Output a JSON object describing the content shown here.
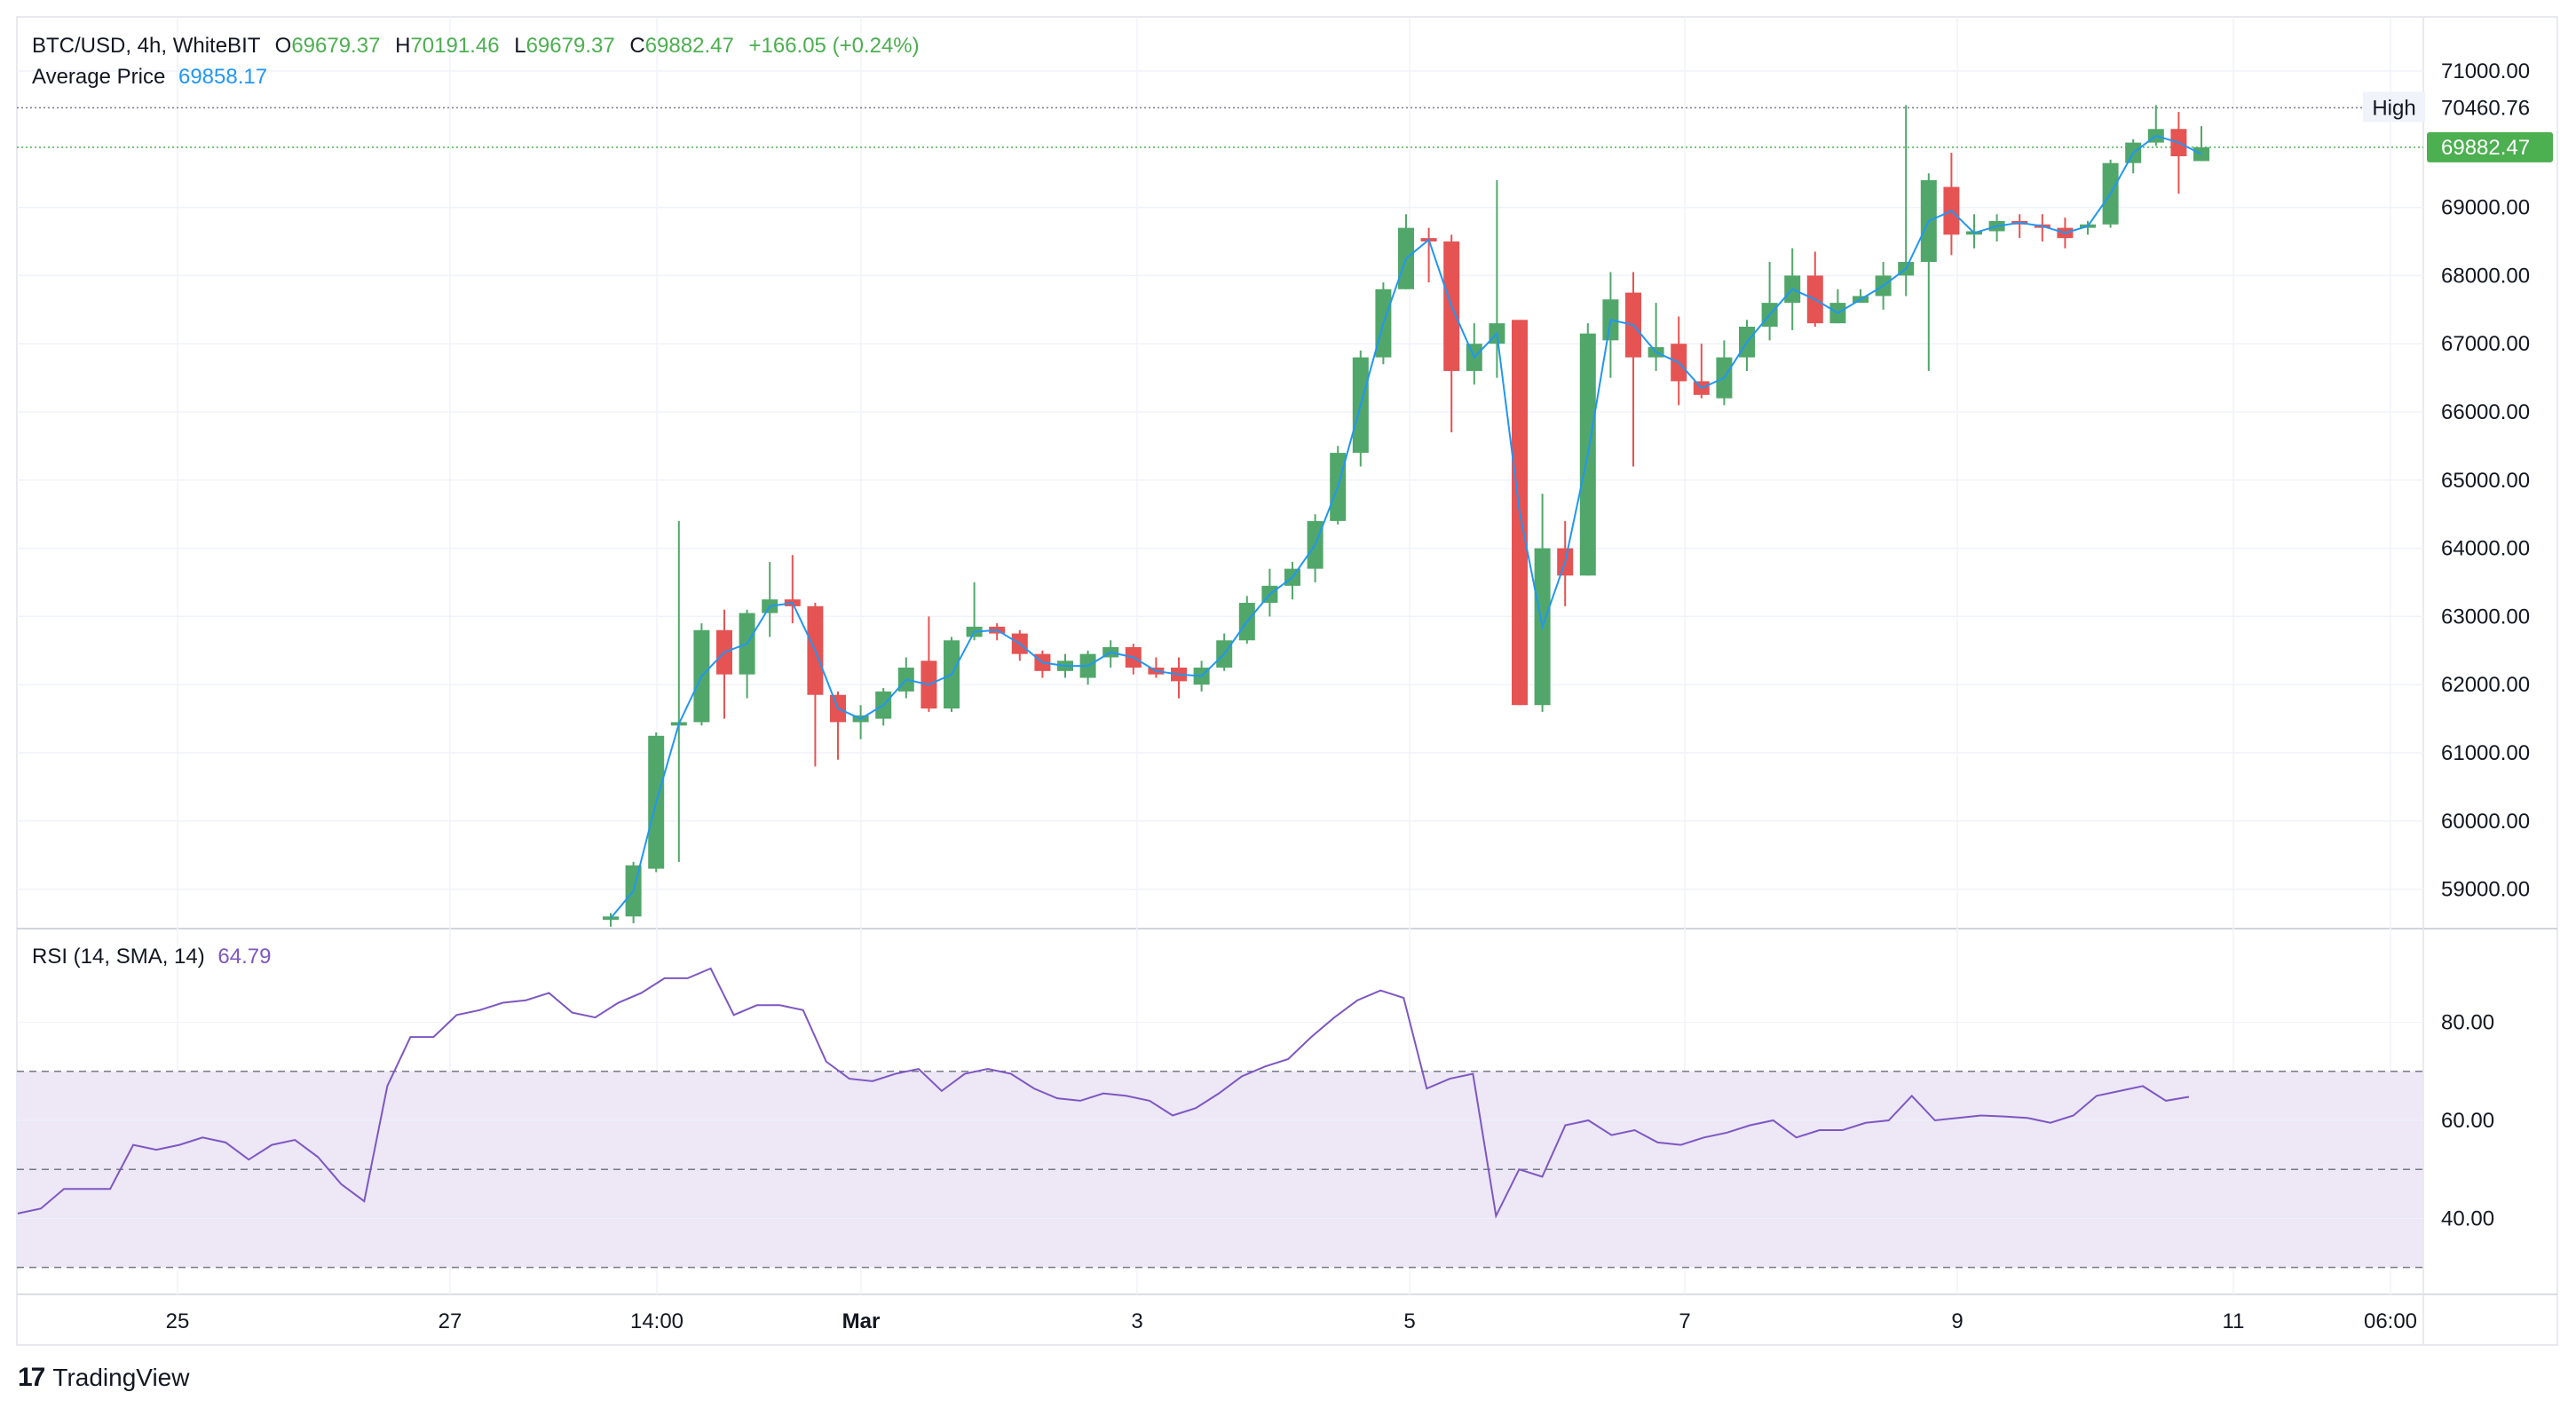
{
  "legend": {
    "symbol": "BTC/USD, 4h, WhiteBIT",
    "o_label": "O",
    "o_value": "69679.37",
    "h_label": "H",
    "h_value": "70191.46",
    "l_label": "L",
    "l_value": "69679.37",
    "c_label": "C",
    "c_value": "69882.47",
    "change": "+166.05 (+0.24%)",
    "avg_label": "Average Price",
    "avg_value": "69858.17",
    "rsi_label": "RSI (14, SMA, 14)",
    "rsi_value": "64.79"
  },
  "brand": {
    "logo": "17",
    "name": "TradingView"
  },
  "colors": {
    "up": "#4caf50",
    "up_body": "#51a76a",
    "down": "#e55353",
    "avg_line": "#2196f3",
    "rsi_line": "#7e57c2",
    "rsi_band": "#ede7f6",
    "last_price_bg": "#4caf50"
  },
  "chart_data": [
    {
      "type": "candlestick",
      "title": "BTC/USD, 4h, WhiteBIT",
      "ylim": [
        58500,
        71300
      ],
      "y_ticks": [
        "71000.00",
        "69000.00",
        "68000.00",
        "67000.00",
        "66000.00",
        "65000.00",
        "64000.00",
        "63000.00",
        "62000.00",
        "61000.00",
        "60000.00",
        "59000.00"
      ],
      "x_ticks": [
        "25",
        "27",
        "14:00",
        "Mar",
        "3",
        "5",
        "7",
        "9",
        "11",
        "06:00"
      ],
      "high_label": "High",
      "high_value": "70460.76",
      "last_value": "69882.47",
      "candles": [
        [
          58550,
          58650,
          58450,
          58600
        ],
        [
          58600,
          59400,
          58500,
          59350
        ],
        [
          59300,
          61300,
          59250,
          61250
        ],
        [
          61400,
          64400,
          59400,
          61450
        ],
        [
          61450,
          62900,
          61400,
          62800
        ],
        [
          62800,
          63100,
          61500,
          62150
        ],
        [
          62150,
          63100,
          61800,
          63050
        ],
        [
          63050,
          63800,
          62700,
          63250
        ],
        [
          63250,
          63900,
          62900,
          63150
        ],
        [
          63150,
          63200,
          60800,
          61850
        ],
        [
          61850,
          61900,
          60900,
          61450
        ],
        [
          61450,
          61700,
          61200,
          61550
        ],
        [
          61500,
          61950,
          61400,
          61900
        ],
        [
          61900,
          62400,
          61800,
          62250
        ],
        [
          62350,
          63000,
          61600,
          61650
        ],
        [
          61650,
          62700,
          61600,
          62650
        ],
        [
          62700,
          63500,
          62650,
          62850
        ],
        [
          62850,
          62900,
          62650,
          62750
        ],
        [
          62750,
          62800,
          62350,
          62450
        ],
        [
          62450,
          62500,
          62100,
          62200
        ],
        [
          62200,
          62450,
          62100,
          62350
        ],
        [
          62100,
          62500,
          62000,
          62450
        ],
        [
          62400,
          62650,
          62250,
          62550
        ],
        [
          62550,
          62600,
          62150,
          62250
        ],
        [
          62250,
          62400,
          62100,
          62150
        ],
        [
          62250,
          62400,
          61800,
          62050
        ],
        [
          62000,
          62350,
          61900,
          62250
        ],
        [
          62250,
          62750,
          62200,
          62650
        ],
        [
          62650,
          63300,
          62600,
          63200
        ],
        [
          63200,
          63700,
          63000,
          63450
        ],
        [
          63450,
          63800,
          63250,
          63700
        ],
        [
          63700,
          64500,
          63500,
          64400
        ],
        [
          64400,
          65500,
          64350,
          65400
        ],
        [
          65400,
          66900,
          65200,
          66800
        ],
        [
          66800,
          67900,
          66700,
          67800
        ],
        [
          67800,
          68900,
          67800,
          68700
        ],
        [
          68550,
          68700,
          67900,
          68500
        ],
        [
          68500,
          68600,
          65700,
          66600
        ],
        [
          66600,
          67300,
          66400,
          67000
        ],
        [
          67000,
          69400,
          66500,
          67300
        ],
        [
          67350,
          67350,
          61700,
          61700
        ],
        [
          61700,
          64800,
          61600,
          64000
        ],
        [
          64000,
          64400,
          63150,
          63600
        ],
        [
          63600,
          67300,
          63600,
          67150
        ],
        [
          67050,
          68050,
          66500,
          67650
        ],
        [
          67750,
          68050,
          65200,
          66800
        ],
        [
          66800,
          67600,
          66600,
          66950
        ],
        [
          67000,
          67400,
          66100,
          66450
        ],
        [
          66450,
          67000,
          66200,
          66250
        ],
        [
          66200,
          67050,
          66100,
          66800
        ],
        [
          66800,
          67350,
          66600,
          67250
        ],
        [
          67250,
          68200,
          67050,
          67600
        ],
        [
          67600,
          68400,
          67200,
          68000
        ],
        [
          68000,
          68350,
          67250,
          67300
        ],
        [
          67300,
          67800,
          67300,
          67600
        ],
        [
          67600,
          67800,
          67600,
          67700
        ],
        [
          67700,
          68200,
          67500,
          68000
        ],
        [
          68000,
          70500,
          67700,
          68200
        ],
        [
          68200,
          69500,
          66600,
          69400
        ],
        [
          69300,
          69800,
          68300,
          68600
        ],
        [
          68600,
          68900,
          68400,
          68650
        ],
        [
          68650,
          68900,
          68500,
          68800
        ],
        [
          68800,
          68900,
          68550,
          68750
        ],
        [
          68750,
          68900,
          68500,
          68700
        ],
        [
          68700,
          68850,
          68400,
          68550
        ],
        [
          68700,
          68800,
          68600,
          68750
        ],
        [
          68750,
          69700,
          68700,
          69650
        ],
        [
          69650,
          70000,
          69500,
          69950
        ],
        [
          69950,
          70500,
          69900,
          70150
        ],
        [
          70150,
          70400,
          69200,
          69750
        ],
        [
          69679.37,
          70191.46,
          69679.37,
          69882.47
        ]
      ]
    },
    {
      "type": "line",
      "title": "RSI (14, SMA, 14)",
      "ylim": [
        28,
        92
      ],
      "y_ticks": [
        "80.00",
        "60.00",
        "40.00"
      ],
      "bands": [
        30,
        50,
        70
      ],
      "values": [
        41,
        42,
        46,
        46,
        46,
        55,
        54,
        55,
        56.5,
        55.5,
        52,
        55,
        56,
        52.5,
        47,
        43.5,
        67,
        77,
        77,
        81.5,
        82.5,
        84,
        84.5,
        86,
        82,
        81,
        84,
        86,
        89,
        89,
        91,
        81.5,
        83.5,
        83.5,
        82.5,
        72,
        68.5,
        68,
        69.5,
        70.5,
        66,
        69.5,
        70.5,
        69.5,
        66.5,
        64.5,
        64,
        65.5,
        65,
        64,
        61,
        62.5,
        65.5,
        69,
        71,
        72.5,
        77,
        81,
        84.5,
        86.5,
        85,
        66.5,
        68.5,
        69.5,
        40.5,
        50,
        48.5,
        59,
        60,
        57,
        58,
        55.5,
        55,
        56.5,
        57.5,
        59,
        60,
        56.5,
        58,
        58,
        59.5,
        60,
        65,
        60,
        60.5,
        61,
        60.8,
        60.5,
        59.5,
        61,
        65,
        66,
        67,
        64,
        64.8
      ]
    }
  ]
}
